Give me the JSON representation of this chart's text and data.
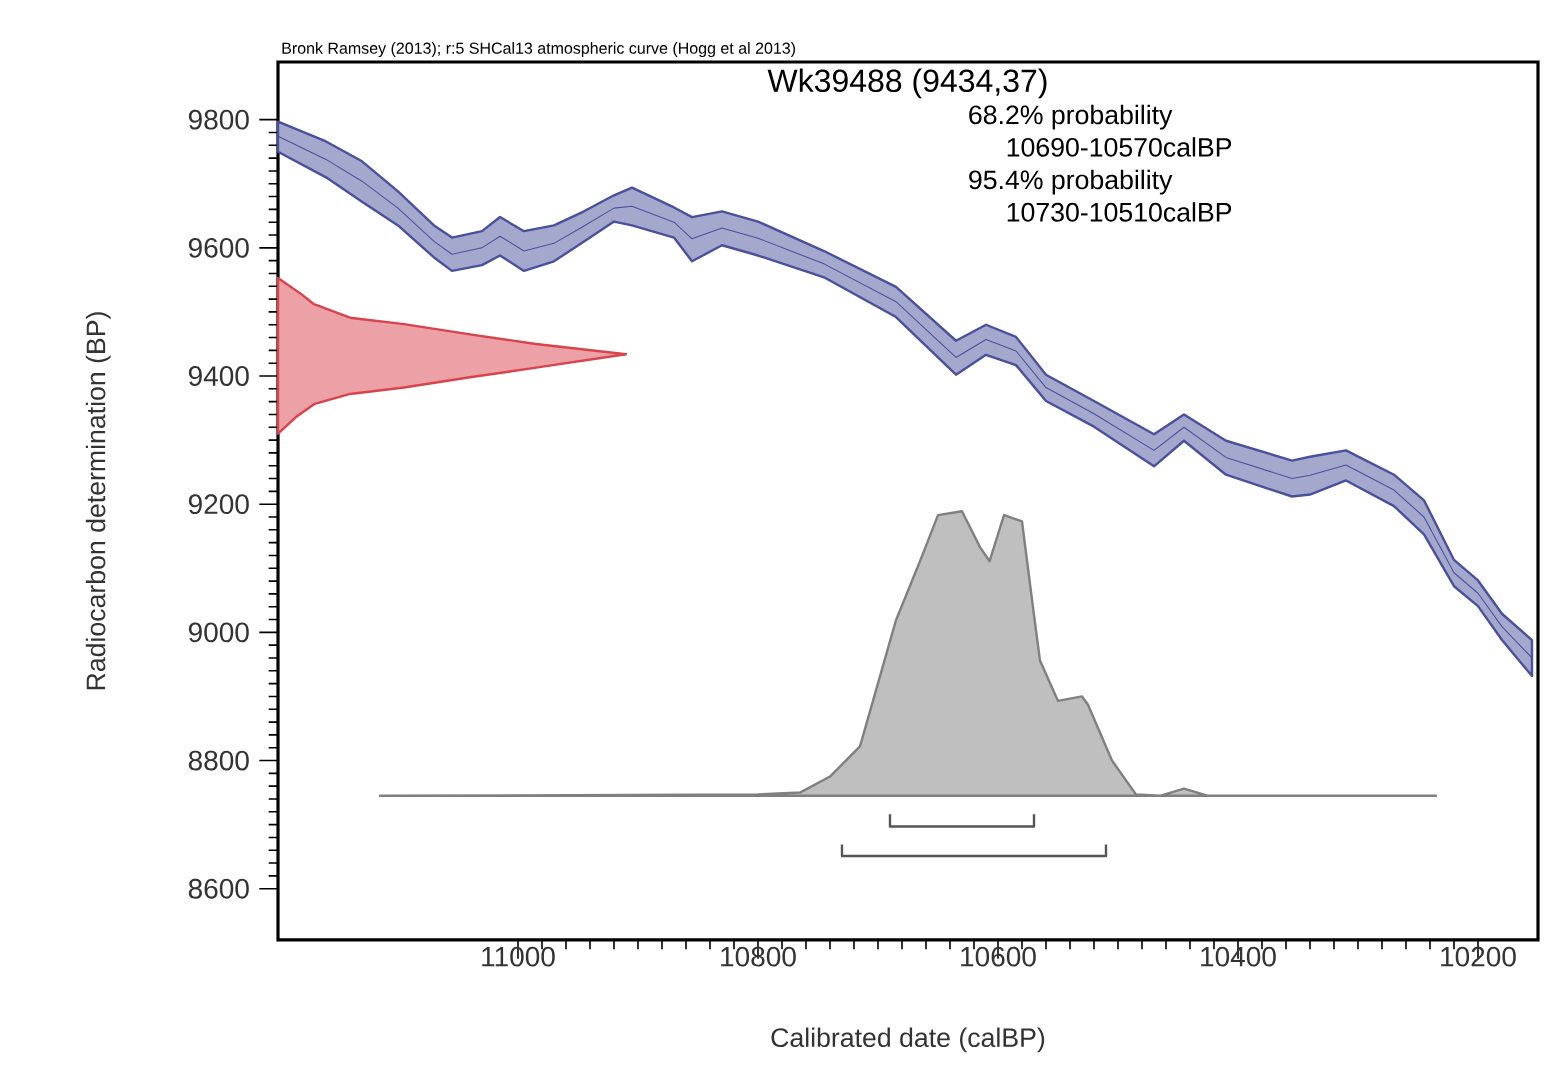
{
  "chart_data": {
    "type": "area",
    "title": "Wk39488 (9434,37)",
    "xlabel": "Calibrated date (calBP)",
    "ylabel": "Radiocarbon determination (BP)",
    "annotations": [
      "Bronk Ramsey (2013); r:5 SHCal13 atmospheric curve (Hogg et al 2013)",
      "68.2% probability",
      "10690-10570calBP",
      "95.4% probability",
      "10730-10510calBP"
    ],
    "xlim": [
      11200,
      10150
    ],
    "ylim": [
      8520,
      9890
    ],
    "xticks": [
      11000,
      10800,
      10600,
      10400,
      10200
    ],
    "yticks": [
      8600,
      8800,
      9000,
      9200,
      9400,
      9600,
      9800
    ],
    "series": [
      {
        "type": "line",
        "color": "#4b509c",
        "x": [
          11200,
          11160,
          11130,
          11100,
          11070,
          11055,
          11030,
          11015,
          10995,
          10970,
          10945,
          10920,
          10905,
          10870,
          10855,
          10830,
          10800,
          10745,
          10685,
          10635,
          10610,
          10585,
          10560,
          10520,
          10470,
          10445,
          10410,
          10355,
          10340,
          10310,
          10270,
          10245,
          10220,
          10200,
          10180,
          10155
        ],
        "values": [
          9774,
          9738,
          9704,
          9662,
          9610,
          9590,
          9600,
          9618,
          9595,
          9607,
          9634,
          9662,
          9665,
          9640,
          9614,
          9631,
          9615,
          9575,
          9516,
          9429,
          9457,
          9439,
          9382,
          9341,
          9284,
          9320,
          9273,
          9240,
          9245,
          9261,
          9222,
          9180,
          9093,
          9061,
          9009,
          8960
        ],
        "upper": [
          9797,
          9766,
          9735,
          9688,
          9635,
          9616,
          9626,
          9648,
          9626,
          9635,
          9657,
          9682,
          9694,
          9663,
          9648,
          9657,
          9641,
          9595,
          9539,
          9455,
          9480,
          9461,
          9402,
          9361,
          9309,
          9340,
          9299,
          9268,
          9274,
          9284,
          9246,
          9206,
          9113,
          9081,
          9029,
          8988
        ],
        "lower": [
          9750,
          9710,
          9672,
          9635,
          9585,
          9564,
          9573,
          9588,
          9564,
          9579,
          9610,
          9641,
          9635,
          9616,
          9579,
          9604,
          9588,
          9554,
          9492,
          9402,
          9433,
          9417,
          9361,
          9321,
          9259,
          9299,
          9246,
          9212,
          9215,
          9237,
          9197,
          9153,
          9072,
          9041,
          8988,
          8932
        ]
      },
      {
        "color": "#d8434c",
        "x": [
          11200,
          11180,
          11170,
          11140,
          11095,
          11040,
          10985,
          10910,
          10985,
          11040,
          11095,
          11140,
          11170,
          11185,
          11200
        ],
        "values": [
          9553,
          9527,
          9512,
          9491,
          9481,
          9465,
          9450,
          9434,
          9413,
          9398,
          9382,
          9372,
          9356,
          9336,
          9310
        ]
      },
      {
        "color": "#808080",
        "x": [
          11115,
          10800,
          10765,
          10740,
          10715,
          10685,
          10665,
          10650,
          10630,
          10615,
          10607,
          10595,
          10580,
          10570,
          10565,
          10550,
          10530,
          10525,
          10505,
          10485,
          10465,
          10445,
          10425,
          10235
        ],
        "values": [
          8745,
          8747,
          8750,
          8775,
          8822,
          9019,
          9111,
          9183,
          9189,
          9133,
          9111,
          9183,
          9173,
          9027,
          8956,
          8893,
          8900,
          8887,
          8800,
          8747,
          8745,
          8756,
          8745,
          8745
        ]
      },
      {
        "type": "line",
        "color": "#555555",
        "x": [
          10690,
          10690,
          10570,
          10570
        ],
        "values": [
          8716,
          8697,
          8697,
          8716
        ]
      },
      {
        "type": "line",
        "color": "#555555",
        "x": [
          10730,
          10730,
          10510,
          10510
        ],
        "values": [
          8669,
          8651,
          8651,
          8669
        ]
      }
    ]
  }
}
